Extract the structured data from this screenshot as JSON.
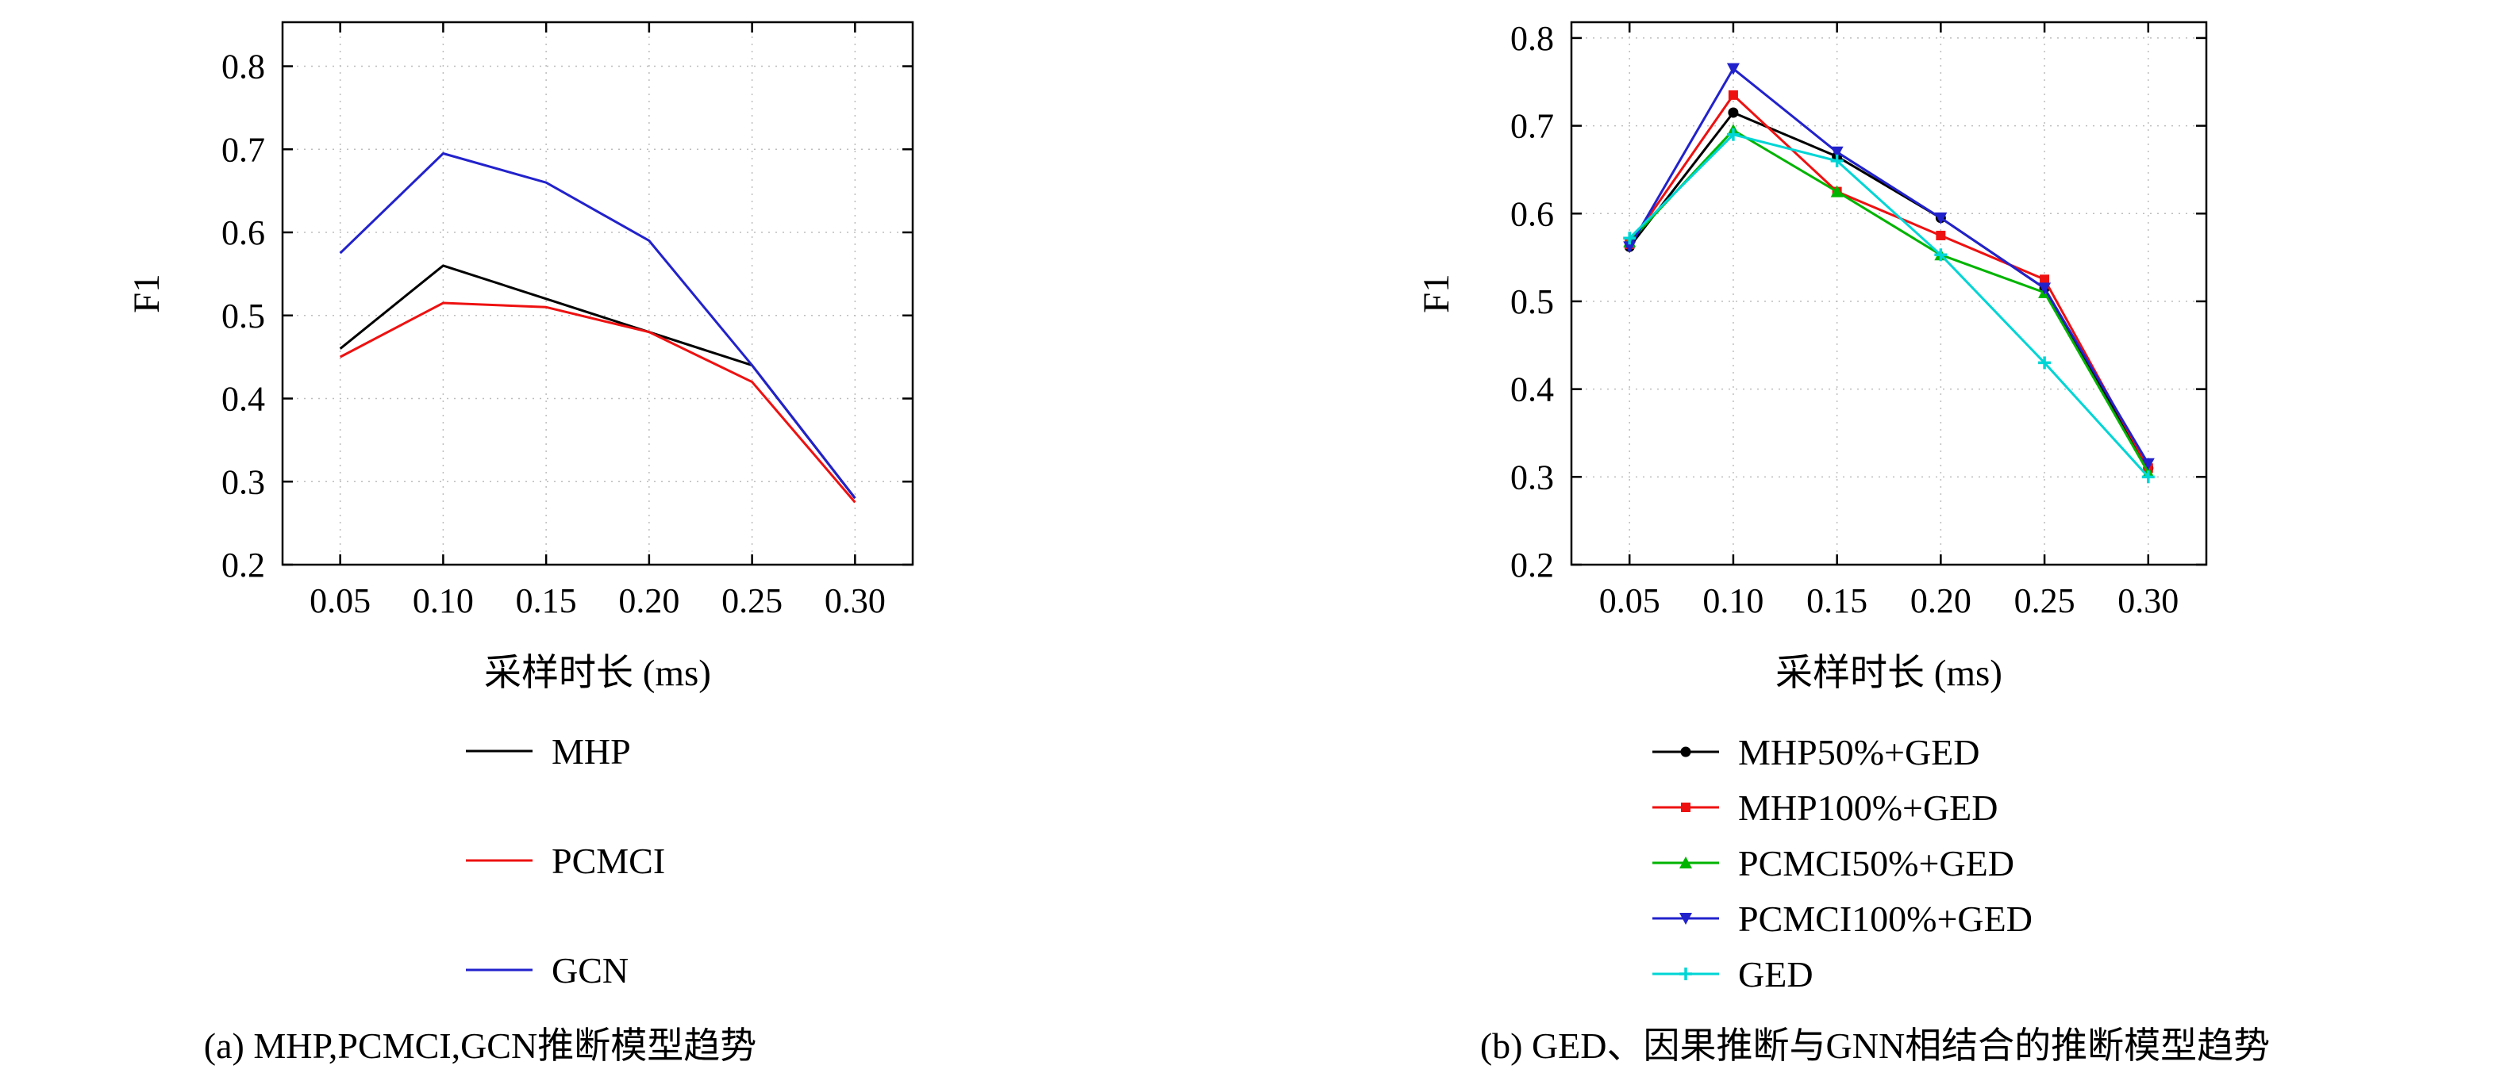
{
  "page": {
    "background": "#ffffff"
  },
  "chart_data": [
    {
      "type": "line",
      "panel": "a",
      "caption": "(a) MHP,PCMCI,GCN推断模型趋势",
      "xlabel": "采样时长 (ms)",
      "ylabel": "F1",
      "x": [
        0.05,
        0.1,
        0.15,
        0.2,
        0.25,
        0.3
      ],
      "xtick_labels": [
        "0.05",
        "0.10",
        "0.15",
        "0.20",
        "0.25",
        "0.30"
      ],
      "yticks": [
        0.2,
        0.3,
        0.4,
        0.5,
        0.6,
        0.7,
        0.8
      ],
      "ytick_labels": [
        "0.2",
        "0.3",
        "0.4",
        "0.5",
        "0.6",
        "0.7",
        "0.8"
      ],
      "xlim": [
        0.022,
        0.328
      ],
      "ylim": [
        0.2,
        0.853
      ],
      "grid": true,
      "legend_position": "below",
      "series": [
        {
          "name": "MHP",
          "color": "#000000",
          "marker": "none",
          "values": [
            0.46,
            0.56,
            0.52,
            0.48,
            0.44,
            0.28
          ]
        },
        {
          "name": "PCMCI",
          "color": "#ee1111",
          "marker": "none",
          "values": [
            0.45,
            0.515,
            0.51,
            0.48,
            0.42,
            0.275
          ]
        },
        {
          "name": "GCN",
          "color": "#2222cc",
          "marker": "none",
          "values": [
            0.575,
            0.695,
            0.66,
            0.59,
            0.44,
            0.28
          ]
        }
      ]
    },
    {
      "type": "line",
      "panel": "b",
      "caption": "(b) GED、因果推断与GNN相结合的推断模型趋势",
      "xlabel": "采样时长 (ms)",
      "ylabel": "F1",
      "x": [
        0.05,
        0.1,
        0.15,
        0.2,
        0.25,
        0.3
      ],
      "xtick_labels": [
        "0.05",
        "0.10",
        "0.15",
        "0.20",
        "0.25",
        "0.30"
      ],
      "yticks": [
        0.2,
        0.3,
        0.4,
        0.5,
        0.6,
        0.7,
        0.8
      ],
      "ytick_labels": [
        "0.2",
        "0.3",
        "0.4",
        "0.5",
        "0.6",
        "0.7",
        "0.8"
      ],
      "xlim": [
        0.022,
        0.328
      ],
      "ylim": [
        0.2,
        0.818
      ],
      "grid": true,
      "legend_position": "below",
      "series": [
        {
          "name": "MHP50%+GED",
          "color": "#000000",
          "marker": "circle",
          "values": [
            0.562,
            0.715,
            0.665,
            0.595,
            0.515,
            0.31
          ]
        },
        {
          "name": "MHP100%+GED",
          "color": "#ee1111",
          "marker": "square",
          "values": [
            0.565,
            0.735,
            0.625,
            0.575,
            0.525,
            0.31
          ]
        },
        {
          "name": "PCMCI50%+GED",
          "color": "#00b400",
          "marker": "triangle-up",
          "values": [
            0.568,
            0.695,
            0.625,
            0.553,
            0.51,
            0.305
          ]
        },
        {
          "name": "PCMCI100%+GED",
          "color": "#2222cc",
          "marker": "triangle-down",
          "values": [
            0.562,
            0.765,
            0.67,
            0.595,
            0.515,
            0.315
          ]
        },
        {
          "name": "GED",
          "color": "#00d5d5",
          "marker": "plus",
          "values": [
            0.572,
            0.69,
            0.66,
            0.553,
            0.43,
            0.3
          ]
        }
      ]
    }
  ],
  "style": {
    "grid_color": "#bdbdbd",
    "axis_color": "#000000"
  }
}
